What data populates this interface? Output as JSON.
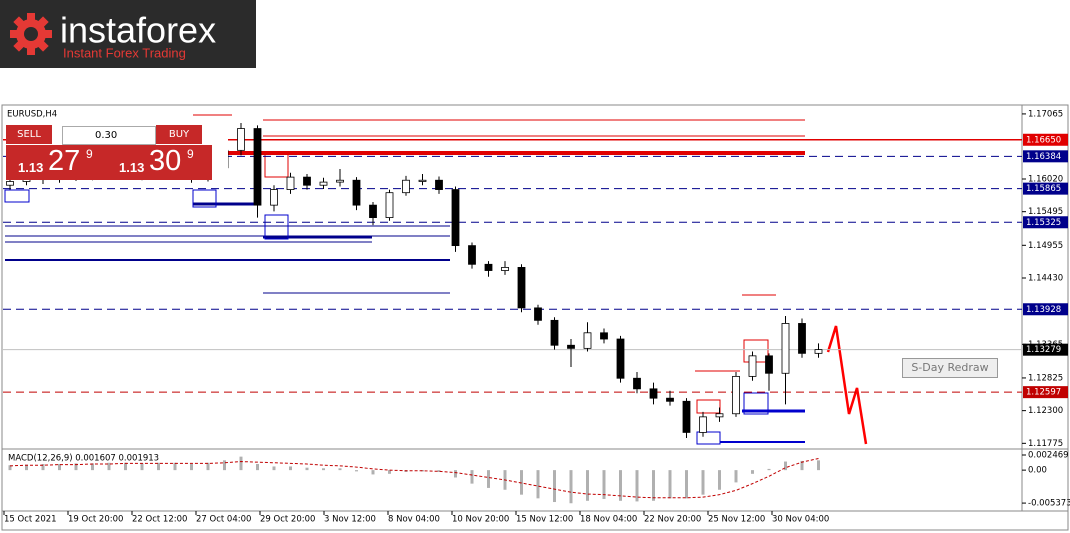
{
  "logo": {
    "name": "instaforex",
    "tagline": "Instant Forex Trading"
  },
  "trade_panel": {
    "sell": "SELL",
    "buy": "BUY",
    "lot": "0.30",
    "bid": {
      "handle": "1.13",
      "pips": "27",
      "fraction": "9"
    },
    "ask": {
      "handle": "1.13",
      "pips": "30",
      "fraction": "9"
    }
  },
  "redraw_button": "S-Day Redraw",
  "chart_data": {
    "type": "candlestick",
    "title": "EURUSD,H4",
    "open": [
      1.1592,
      1.1598,
      1.1604,
      1.1601,
      1.1607,
      1.1605,
      1.161,
      1.1608,
      1.1612,
      1.1607,
      1.1614,
      1.1611,
      1.1602,
      1.162,
      1.1648,
      1.1683,
      1.156,
      1.1585,
      1.1605,
      1.1592,
      1.1597,
      1.16,
      1.156,
      1.154,
      1.158,
      1.1598,
      1.16,
      1.1585,
      1.1495,
      1.1465,
      1.1455,
      1.146,
      1.1395,
      1.1375,
      1.1335,
      1.133,
      1.1355,
      1.1345,
      1.1282,
      1.1265,
      1.125,
      1.1245,
      1.1195,
      1.122,
      1.1225,
      1.1285,
      1.1318,
      1.129,
      1.137,
      1.1322
    ],
    "high": [
      1.1603,
      1.161,
      1.1609,
      1.1612,
      1.1613,
      1.1616,
      1.1615,
      1.1619,
      1.1617,
      1.162,
      1.1619,
      1.1615,
      1.1628,
      1.166,
      1.1692,
      1.1688,
      1.1592,
      1.1612,
      1.161,
      1.1604,
      1.1618,
      1.1605,
      1.1565,
      1.1585,
      1.1607,
      1.161,
      1.1606,
      1.159,
      1.15,
      1.147,
      1.147,
      1.1465,
      1.14,
      1.138,
      1.1345,
      1.1372,
      1.1362,
      1.135,
      1.1292,
      1.1275,
      1.1262,
      1.125,
      1.1228,
      1.1235,
      1.1292,
      1.1325,
      1.1322,
      1.1382,
      1.1378,
      1.1338
    ],
    "low": [
      1.1585,
      1.1592,
      1.1594,
      1.1596,
      1.1599,
      1.16,
      1.1602,
      1.1603,
      1.16,
      1.1602,
      1.1605,
      1.1596,
      1.1598,
      1.1612,
      1.164,
      1.154,
      1.155,
      1.1578,
      1.1585,
      1.1586,
      1.159,
      1.1552,
      1.1528,
      1.1535,
      1.1575,
      1.1592,
      1.1578,
      1.1485,
      1.1458,
      1.1445,
      1.1448,
      1.1388,
      1.1368,
      1.1328,
      1.13,
      1.1325,
      1.1338,
      1.1275,
      1.1258,
      1.124,
      1.1238,
      1.1186,
      1.1188,
      1.1212,
      1.122,
      1.1278,
      1.1262,
      1.124,
      1.1315,
      1.1315
    ],
    "close": [
      1.1598,
      1.1604,
      1.1601,
      1.1607,
      1.1605,
      1.161,
      1.1608,
      1.1612,
      1.1607,
      1.1614,
      1.1611,
      1.1602,
      1.162,
      1.1648,
      1.1683,
      1.156,
      1.1585,
      1.1605,
      1.1592,
      1.1597,
      1.16,
      1.156,
      1.154,
      1.158,
      1.16,
      1.16,
      1.1585,
      1.1495,
      1.1465,
      1.1455,
      1.146,
      1.1395,
      1.1375,
      1.1335,
      1.133,
      1.1355,
      1.1345,
      1.1282,
      1.1265,
      1.125,
      1.1245,
      1.1195,
      1.122,
      1.1225,
      1.1285,
      1.1318,
      1.129,
      1.137,
      1.1322,
      1.1328
    ],
    "ylim": [
      1.117,
      1.1716
    ],
    "yticks": [
      1.17065,
      {
        "value": 1.1602,
        "label": "1.16020"
      },
      1.15495,
      1.14955,
      {
        "value": 1.1443,
        "label": "1.14430"
      },
      1.13365,
      1.12825,
      {
        "value": 1.123,
        "label": "1.12300"
      },
      1.11775
    ],
    "levels": [
      {
        "value": 1.1665,
        "label": "1.16650",
        "color": "#e00000",
        "style": "solid"
      },
      {
        "value": 1.16384,
        "label": "1.16384",
        "color": "#00008b",
        "style": "dashed"
      },
      {
        "value": 1.15865,
        "label": "1.15865",
        "color": "#00008b",
        "style": "dashed"
      },
      {
        "value": 1.15325,
        "label": "1.15325",
        "color": "#00008b",
        "style": "dashed"
      },
      {
        "value": 1.13928,
        "label": "1.13928",
        "color": "#00008b",
        "style": "dashed"
      },
      {
        "value": 1.13279,
        "label": "1.13279",
        "color": "#000000",
        "style": "current"
      },
      {
        "value": 1.12597,
        "label": "1.12597",
        "color": "#c00000",
        "style": "dashed"
      }
    ],
    "time_labels": [
      "15 Oct 2021",
      "19 Oct 20:00",
      "22 Oct 12:00",
      "27 Oct 04:00",
      "29 Oct 20:00",
      "3 Nov 12:00",
      "8 Nov 04:00",
      "10 Nov 20:00",
      "15 Nov 12:00",
      "18 Nov 04:00",
      "22 Nov 20:00",
      "25 Nov 12:00",
      "30 Nov 04:00"
    ],
    "macd": {
      "label": "MACD(12,26,9) 0.001607 0.001913",
      "color": "#c00000",
      "values": [
        0.0008,
        0.0009,
        0.001,
        0.001,
        0.0011,
        0.0011,
        0.0012,
        0.0012,
        0.0011,
        0.0012,
        0.0012,
        0.001,
        0.0012,
        0.0016,
        0.0022,
        0.001,
        0.0006,
        0.0006,
        0.0004,
        0.0003,
        0.0003,
        -0.0002,
        -0.0007,
        -0.0006,
        -0.0003,
        -0.0002,
        -0.0003,
        -0.0012,
        -0.0022,
        -0.0029,
        -0.0032,
        -0.004,
        -0.0046,
        -0.0052,
        -0.0054,
        -0.005,
        -0.0047,
        -0.005,
        -0.0051,
        -0.005,
        -0.0046,
        -0.0046,
        -0.004,
        -0.0032,
        -0.002,
        -0.0006,
        0.0002,
        0.0014,
        0.0015,
        0.0016
      ],
      "signal": [
        0.0007,
        0.0008,
        0.0008,
        0.0009,
        0.0009,
        0.001,
        0.001,
        0.0011,
        0.0011,
        0.0011,
        0.0011,
        0.0011,
        0.0011,
        0.0012,
        0.0014,
        0.0013,
        0.0012,
        0.0011,
        0.001,
        0.0008,
        0.0007,
        0.0005,
        0.0002,
        0,
        -0.0001,
        -0.0001,
        -0.0002,
        -0.0004,
        -0.0008,
        -0.0012,
        -0.0016,
        -0.0021,
        -0.0026,
        -0.0031,
        -0.0036,
        -0.0039,
        -0.004,
        -0.0042,
        -0.0044,
        -0.0045,
        -0.0045,
        -0.0045,
        -0.0044,
        -0.004,
        -0.0033,
        -0.0022,
        -0.001,
        0.0004,
        0.0013,
        0.0019
      ],
      "ylim": [
        -0.0065,
        0.00312
      ],
      "yticks": [
        0.002469,
        {
          "value": 0,
          "label": "0.00"
        },
        -0.005373
      ]
    }
  }
}
